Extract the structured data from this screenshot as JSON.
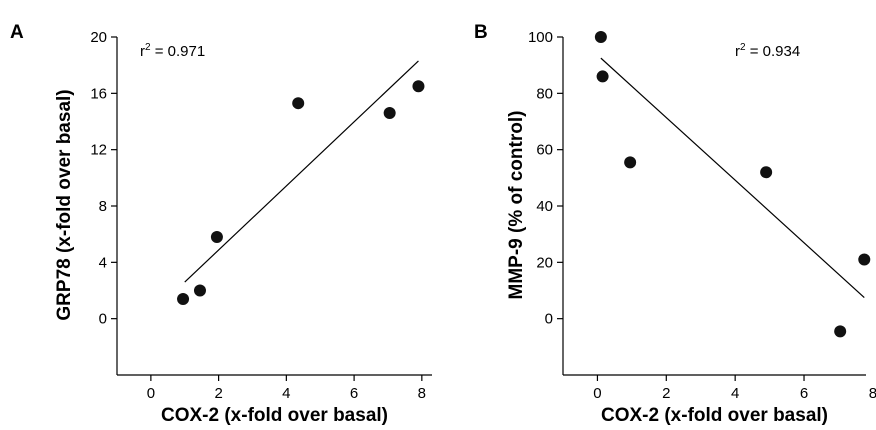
{
  "chart_data": [
    {
      "type": "scatter",
      "panel_label": "A",
      "xlabel": "COX-2 (x-fold over basal)",
      "ylabel": "GRP78 (x-fold over basal)",
      "xlim": [
        -1,
        8.3
      ],
      "ylim": [
        -4,
        20
      ],
      "xticks": [
        0,
        2,
        4,
        6,
        8
      ],
      "yticks": [
        0,
        4,
        8,
        12,
        16,
        20
      ],
      "points": [
        {
          "x": 0.95,
          "y": 1.4
        },
        {
          "x": 1.45,
          "y": 2.0
        },
        {
          "x": 1.95,
          "y": 5.8
        },
        {
          "x": 4.35,
          "y": 15.3
        },
        {
          "x": 7.05,
          "y": 14.6
        },
        {
          "x": 7.9,
          "y": 16.5
        }
      ],
      "fit_line": {
        "x": [
          1.0,
          7.9
        ],
        "y": [
          2.6,
          18.3
        ]
      },
      "annotation": {
        "prefix": "r",
        "superscript": "2",
        "suffix": " = 0.971"
      },
      "grid": false,
      "colors": {
        "points": "#111111",
        "line": "#000000"
      }
    },
    {
      "type": "scatter",
      "panel_label": "B",
      "xlabel": "COX-2 (x-fold over basal)",
      "ylabel": "MMP-9 (% of control)",
      "xlim": [
        -1,
        7.8
      ],
      "ylim": [
        -20,
        100
      ],
      "xticks": [
        0,
        2,
        4,
        6,
        8
      ],
      "yticks": [
        0,
        20,
        40,
        60,
        80,
        100
      ],
      "points": [
        {
          "x": 0.1,
          "y": 100
        },
        {
          "x": 0.15,
          "y": 86
        },
        {
          "x": 0.95,
          "y": 55.5
        },
        {
          "x": 4.9,
          "y": 52
        },
        {
          "x": 7.05,
          "y": -4.5
        },
        {
          "x": 7.75,
          "y": 21
        }
      ],
      "fit_line": {
        "x": [
          0.1,
          7.75
        ],
        "y": [
          92.5,
          7.5
        ]
      },
      "annotation": {
        "prefix": "r",
        "superscript": "2",
        "suffix": " = 0.934"
      },
      "grid": false,
      "colors": {
        "points": "#111111",
        "line": "#000000"
      }
    }
  ]
}
